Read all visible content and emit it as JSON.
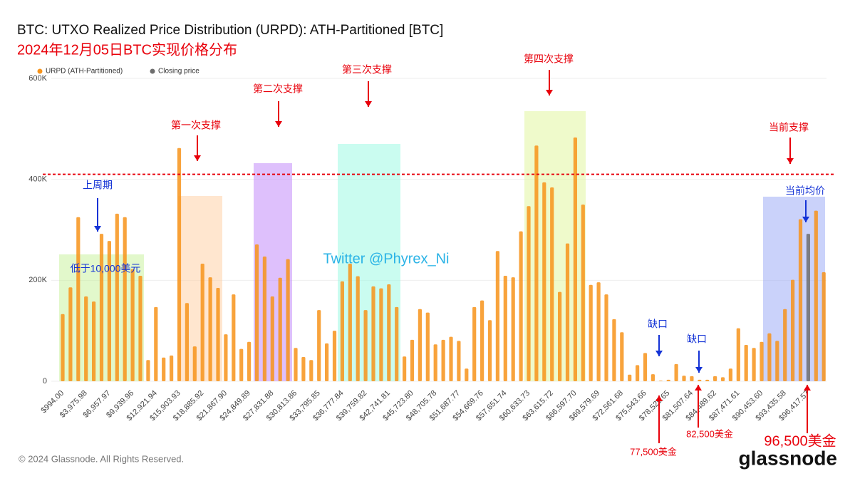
{
  "chart_data": {
    "type": "bar",
    "title": "BTC: UTXO Realized Price Distribution (URPD): ATH-Partitioned [BTC]",
    "subtitle": "2024年12月05日BTC实现价格分布",
    "categories": [
      "$994.00",
      null,
      null,
      "$3,975.98",
      null,
      null,
      "$6,957.97",
      null,
      null,
      "$9,939.96",
      null,
      null,
      "$12,921.94",
      null,
      null,
      "$15,903.93",
      null,
      null,
      "$18,885.92",
      null,
      null,
      "$21,867.90",
      null,
      null,
      "$24,849.89",
      null,
      null,
      "$27,831.88",
      null,
      null,
      "$30,813.86",
      null,
      null,
      "$33,795.85",
      null,
      null,
      "$36,777.84",
      null,
      null,
      "$39,759.82",
      null,
      null,
      "$42,741.81",
      null,
      null,
      "$45,723.80",
      null,
      null,
      "$48,705.78",
      null,
      null,
      "$51,687.77",
      null,
      null,
      "$54,669.76",
      null,
      null,
      "$57,651.74",
      null,
      null,
      "$60,633.73",
      null,
      null,
      "$63,615.72",
      null,
      null,
      "$66,597.70",
      null,
      null,
      "$69,579.69",
      null,
      null,
      "$72,561.68",
      null,
      null,
      "$75,543.66",
      null,
      null,
      "$78,525.65",
      null,
      null,
      "$81,507.64",
      null,
      null,
      "$84,489.62",
      null,
      null,
      "$87,471.61",
      null,
      null,
      "$90,453.60",
      null,
      null,
      "$93,435.58",
      null,
      null,
      "$96,417.57",
      null,
      null
    ],
    "series": [
      {
        "name": "URPD (ATH-Partitioned)",
        "color": "#f7931a",
        "values": [
          133,
          186,
          325,
          168,
          158,
          292,
          278,
          332,
          325,
          222,
          209,
          42,
          147,
          47,
          51,
          462,
          155,
          69,
          233,
          206,
          185,
          93,
          172,
          64,
          78,
          271,
          247,
          168,
          205,
          242,
          66,
          48,
          42,
          141,
          75,
          100,
          198,
          233,
          208,
          141,
          188,
          184,
          192,
          147,
          49,
          82,
          143,
          136,
          73,
          82,
          88,
          80,
          25,
          147,
          160,
          121,
          258,
          209,
          206,
          297,
          347,
          467,
          394,
          384,
          177,
          273,
          483,
          350,
          191,
          196,
          172,
          123,
          97,
          13,
          32,
          56,
          14,
          1,
          3,
          34,
          11,
          10,
          3,
          3,
          10,
          8,
          25,
          105,
          72,
          66,
          78,
          95,
          80,
          143,
          201,
          321,
          null,
          338,
          216
        ]
      },
      {
        "name": "Closing price",
        "color": "#6e6e6e",
        "values": [
          null,
          null,
          null,
          null,
          null,
          null,
          null,
          null,
          null,
          null,
          null,
          null,
          null,
          null,
          null,
          null,
          null,
          null,
          null,
          null,
          null,
          null,
          null,
          null,
          null,
          null,
          null,
          null,
          null,
          null,
          null,
          null,
          null,
          null,
          null,
          null,
          null,
          null,
          null,
          null,
          null,
          null,
          null,
          null,
          null,
          null,
          null,
          null,
          null,
          null,
          null,
          null,
          null,
          null,
          null,
          null,
          null,
          null,
          null,
          null,
          null,
          null,
          null,
          null,
          null,
          null,
          null,
          null,
          null,
          null,
          null,
          null,
          null,
          null,
          null,
          null,
          null,
          null,
          null,
          null,
          null,
          null,
          null,
          null,
          null,
          null,
          null,
          null,
          null,
          null,
          null,
          null,
          null,
          null,
          null,
          null,
          292,
          null,
          null
        ]
      }
    ],
    "ylim": [
      0,
      600
    ],
    "yticks": [
      0,
      {
        "value": 200,
        "label": "200K"
      },
      {
        "value": 400,
        "label": "400K"
      },
      {
        "value": 600,
        "label": "600K"
      }
    ],
    "grid": true,
    "hline": 410,
    "annotations": [
      "第一次支撑",
      "第二次支撑",
      "第三次支撑",
      "第四次支撑",
      "当前支撑",
      "上周期",
      "低于10,000美元",
      "缺口",
      "缺口",
      "当前均价",
      "Twitter @Phyrex_Ni",
      "77,500美金",
      "82,500美金",
      "96,500美金"
    ],
    "footer": "© 2024 Glassnode. All Rights Reserved.",
    "logo": "glassnode"
  }
}
